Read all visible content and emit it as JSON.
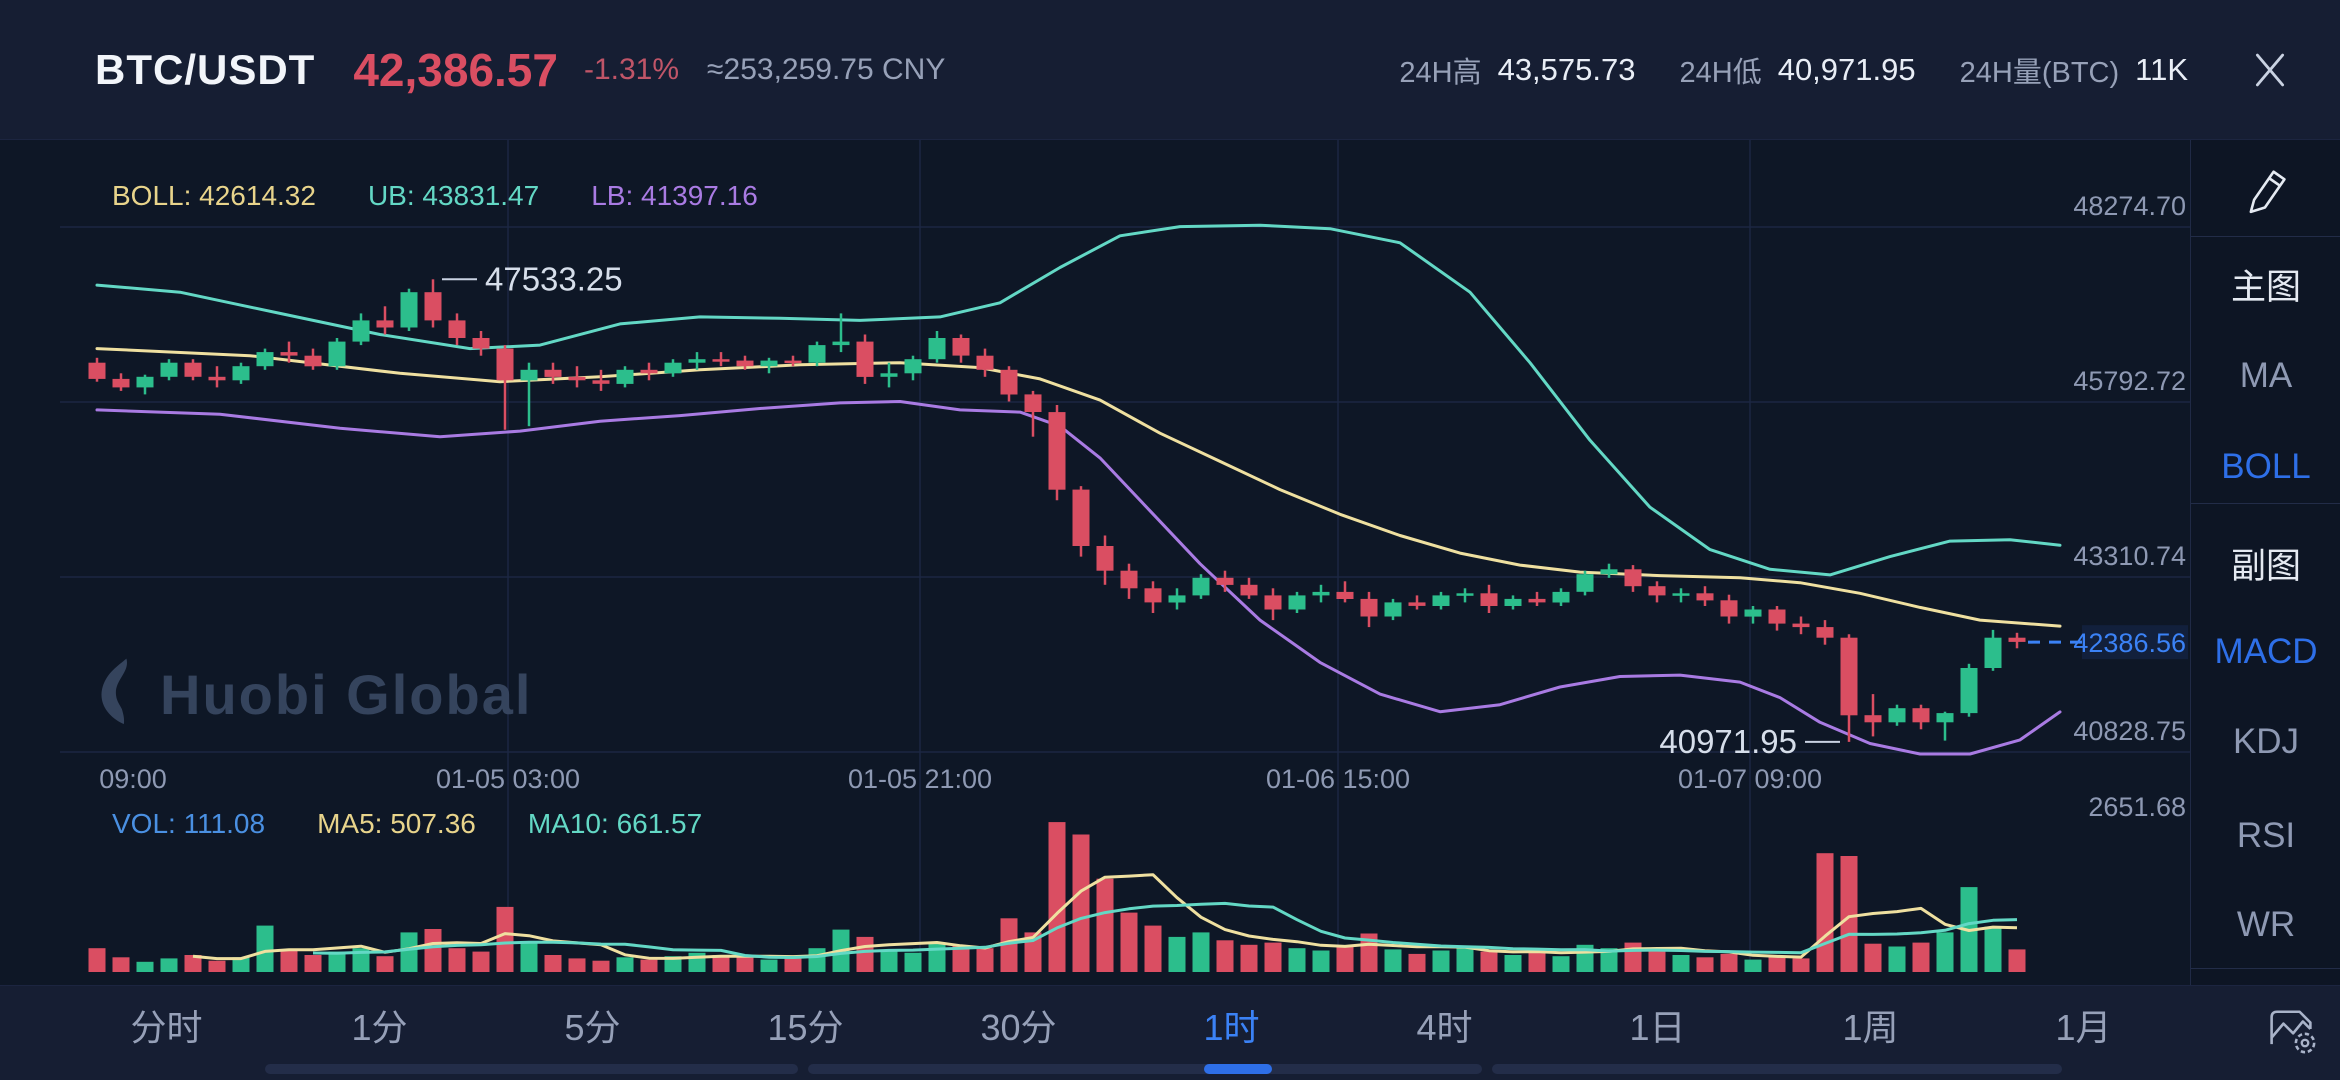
{
  "header": {
    "pair": "BTC/USDT",
    "price": "42,386.57",
    "change": "-1.31%",
    "approx_cny": "≈253,259.75 CNY",
    "stats": [
      {
        "label": "24H高",
        "value": "43,575.73"
      },
      {
        "label": "24H低",
        "value": "40,971.95"
      },
      {
        "label": "24H量(BTC)",
        "value": "11K"
      }
    ]
  },
  "icons": {
    "close": "close-icon",
    "edit": "pencil-icon",
    "settings": "chart-settings-icon",
    "logo": "huobi-flame-icon"
  },
  "indicators": {
    "main": [
      {
        "label": "BOLL:",
        "value": "42614.32",
        "color": "#E8D48B"
      },
      {
        "label": "UB:",
        "value": "43831.47",
        "color": "#63D8C5"
      },
      {
        "label": "LB:",
        "value": "41397.16",
        "color": "#A97BE3"
      }
    ],
    "volume": [
      {
        "label": "VOL:",
        "value": "111.08",
        "color": "#4A90E2"
      },
      {
        "label": "MA5:",
        "value": "507.36",
        "color": "#E8D48B"
      },
      {
        "label": "MA10:",
        "value": "661.57",
        "color": "#63D8C5"
      }
    ]
  },
  "watermark": {
    "text": "Huobi Global"
  },
  "sidebar": {
    "items": [
      {
        "label": "主图",
        "kind": "heading",
        "active": false
      },
      {
        "label": "MA",
        "kind": "option",
        "active": false
      },
      {
        "label": "BOLL",
        "kind": "option",
        "active": true
      },
      {
        "label": "副图",
        "kind": "heading",
        "active": false
      },
      {
        "label": "MACD",
        "kind": "option",
        "active": true
      },
      {
        "label": "KDJ",
        "kind": "option",
        "active": false
      },
      {
        "label": "RSI",
        "kind": "option",
        "active": false
      },
      {
        "label": "WR",
        "kind": "option",
        "active": false
      }
    ]
  },
  "footer": {
    "tabs": [
      {
        "label": "分时",
        "active": false
      },
      {
        "label": "1分",
        "active": false
      },
      {
        "label": "5分",
        "active": false
      },
      {
        "label": "15分",
        "active": false
      },
      {
        "label": "30分",
        "active": false
      },
      {
        "label": "1时",
        "active": true
      },
      {
        "label": "4时",
        "active": false
      },
      {
        "label": "1日",
        "active": false
      },
      {
        "label": "1周",
        "active": false
      },
      {
        "label": "1月",
        "active": false
      }
    ]
  },
  "chart_data": {
    "type": "candlestick",
    "title": "BTC/USDT 1小时 K线 (BOLL)",
    "price_axis_ticks": [
      {
        "label": "48274.70",
        "value": 48274.7
      },
      {
        "label": "45792.72",
        "value": 45792.72
      },
      {
        "label": "43310.74",
        "value": 43310.74
      },
      {
        "label": "40828.75",
        "value": 40828.75
      }
    ],
    "x_axis_labels": [
      "09:00",
      "01-05 03:00",
      "01-05 21:00",
      "01-06 15:00",
      "01-07 09:00"
    ],
    "current_price": {
      "label": "42386.56",
      "value": 42386.56
    },
    "annotations": {
      "high": {
        "label": "47533.25",
        "price": 47533.25,
        "index": 14
      },
      "low": {
        "label": "40971.95",
        "price": 40971.95,
        "index": 73
      }
    },
    "volume_axis": {
      "label": "2651.68",
      "max": 2651.68
    },
    "colors": {
      "up": "#2CBE8C",
      "down": "#DA4E62",
      "band_upper": "#63D8C5",
      "band_middle": "#EFE0A0",
      "band_lower": "#A97BE3",
      "price_line": "#3B82F6",
      "grid": "#1C2742",
      "axis_text": "#8E99B3",
      "annotation_text": "#D6DEEA",
      "vol_ma5": "#EFE0A0",
      "vol_ma10": "#63D8C5"
    },
    "candles": [
      [
        46350,
        46420,
        46080,
        46120
      ],
      [
        46120,
        46200,
        45950,
        46000
      ],
      [
        46000,
        46180,
        45900,
        46150
      ],
      [
        46150,
        46400,
        46100,
        46350
      ],
      [
        46350,
        46400,
        46100,
        46150
      ],
      [
        46150,
        46300,
        46000,
        46100
      ],
      [
        46100,
        46350,
        46050,
        46300
      ],
      [
        46300,
        46550,
        46250,
        46500
      ],
      [
        46500,
        46650,
        46350,
        46450
      ],
      [
        46450,
        46550,
        46250,
        46300
      ],
      [
        46300,
        46700,
        46250,
        46650
      ],
      [
        46650,
        47050,
        46600,
        46950
      ],
      [
        46950,
        47150,
        46750,
        46850
      ],
      [
        46850,
        47400,
        46800,
        47350
      ],
      [
        47350,
        47533,
        46850,
        46950
      ],
      [
        46950,
        47050,
        46600,
        46700
      ],
      [
        46700,
        46800,
        46450,
        46550
      ],
      [
        46550,
        46600,
        45400,
        46100
      ],
      [
        46100,
        46350,
        45450,
        46250
      ],
      [
        46250,
        46350,
        46050,
        46150
      ],
      [
        46150,
        46300,
        46000,
        46100
      ],
      [
        46100,
        46250,
        45950,
        46050
      ],
      [
        46050,
        46300,
        46000,
        46250
      ],
      [
        46250,
        46350,
        46100,
        46200
      ],
      [
        46200,
        46400,
        46150,
        46350
      ],
      [
        46350,
        46500,
        46250,
        46400
      ],
      [
        46400,
        46500,
        46300,
        46380
      ],
      [
        46380,
        46450,
        46250,
        46300
      ],
      [
        46300,
        46420,
        46200,
        46380
      ],
      [
        46380,
        46450,
        46300,
        46350
      ],
      [
        46350,
        46650,
        46300,
        46600
      ],
      [
        46600,
        47050,
        46500,
        46650
      ],
      [
        46650,
        46750,
        46050,
        46150
      ],
      [
        46150,
        46350,
        46000,
        46200
      ],
      [
        46200,
        46450,
        46100,
        46400
      ],
      [
        46400,
        46800,
        46350,
        46700
      ],
      [
        46700,
        46750,
        46350,
        46450
      ],
      [
        46450,
        46550,
        46150,
        46250
      ],
      [
        46250,
        46300,
        45800,
        45900
      ],
      [
        45900,
        45950,
        45300,
        45650
      ],
      [
        45650,
        45750,
        44400,
        44550
      ],
      [
        44550,
        44600,
        43600,
        43750
      ],
      [
        43750,
        43900,
        43200,
        43400
      ],
      [
        43400,
        43500,
        43000,
        43150
      ],
      [
        43150,
        43250,
        42800,
        42950
      ],
      [
        42950,
        43150,
        42850,
        43050
      ],
      [
        43050,
        43350,
        43000,
        43300
      ],
      [
        43300,
        43400,
        43100,
        43200
      ],
      [
        43200,
        43300,
        43000,
        43050
      ],
      [
        43050,
        43150,
        42700,
        42850
      ],
      [
        42850,
        43100,
        42800,
        43050
      ],
      [
        43050,
        43200,
        42950,
        43100
      ],
      [
        43100,
        43250,
        42950,
        43000
      ],
      [
        43000,
        43100,
        42600,
        42750
      ],
      [
        42750,
        43000,
        42700,
        42950
      ],
      [
        42950,
        43050,
        42850,
        42900
      ],
      [
        42900,
        43100,
        42850,
        43050
      ],
      [
        43050,
        43150,
        42950,
        43080
      ],
      [
        43080,
        43200,
        42800,
        42900
      ],
      [
        42900,
        43050,
        42850,
        43000
      ],
      [
        43000,
        43100,
        42900,
        42950
      ],
      [
        42950,
        43150,
        42900,
        43100
      ],
      [
        43100,
        43400,
        43050,
        43350
      ],
      [
        43350,
        43500,
        43300,
        43420
      ],
      [
        43420,
        43480,
        43100,
        43180
      ],
      [
        43180,
        43250,
        42950,
        43050
      ],
      [
        43050,
        43150,
        42950,
        43080
      ],
      [
        43080,
        43180,
        42900,
        42980
      ],
      [
        42980,
        43060,
        42650,
        42750
      ],
      [
        42750,
        42900,
        42650,
        42850
      ],
      [
        42850,
        42900,
        42550,
        42650
      ],
      [
        42650,
        42750,
        42500,
        42600
      ],
      [
        42600,
        42700,
        42350,
        42450
      ],
      [
        42450,
        42500,
        40972,
        41350
      ],
      [
        41350,
        41650,
        41050,
        41250
      ],
      [
        41250,
        41500,
        41200,
        41450
      ],
      [
        41450,
        41500,
        41150,
        41250
      ],
      [
        41250,
        41400,
        40990,
        41380
      ],
      [
        41380,
        42080,
        41330,
        42020
      ],
      [
        42020,
        42560,
        41980,
        42450
      ],
      [
        42450,
        42520,
        42300,
        42390
      ]
    ],
    "volumes": [
      420,
      260,
      180,
      240,
      300,
      200,
      260,
      820,
      380,
      300,
      360,
      420,
      280,
      700,
      760,
      420,
      360,
      1150,
      520,
      300,
      240,
      200,
      260,
      220,
      280,
      340,
      300,
      260,
      220,
      240,
      420,
      750,
      620,
      380,
      340,
      520,
      460,
      420,
      950,
      700,
      2650,
      2430,
      1650,
      1050,
      820,
      620,
      700,
      560,
      480,
      520,
      420,
      380,
      460,
      680,
      400,
      320,
      380,
      420,
      360,
      300,
      340,
      280,
      480,
      420,
      520,
      380,
      300,
      260,
      320,
      220,
      280,
      240,
      2100,
      2050,
      500,
      450,
      520,
      700,
      1500,
      800,
      400
    ],
    "bands": {
      "upper": [
        [
          97,
          47450
        ],
        [
          180,
          47350
        ],
        [
          280,
          47050
        ],
        [
          380,
          46750
        ],
        [
          470,
          46550
        ],
        [
          540,
          46600
        ],
        [
          620,
          46900
        ],
        [
          700,
          47000
        ],
        [
          780,
          46980
        ],
        [
          860,
          46950
        ],
        [
          940,
          47000
        ],
        [
          1000,
          47200
        ],
        [
          1060,
          47700
        ],
        [
          1120,
          48150
        ],
        [
          1180,
          48280
        ],
        [
          1260,
          48300
        ],
        [
          1330,
          48250
        ],
        [
          1400,
          48050
        ],
        [
          1470,
          47350
        ],
        [
          1530,
          46350
        ],
        [
          1590,
          45250
        ],
        [
          1650,
          44300
        ],
        [
          1710,
          43700
        ],
        [
          1770,
          43420
        ],
        [
          1830,
          43340
        ],
        [
          1890,
          43600
        ],
        [
          1950,
          43820
        ],
        [
          2010,
          43840
        ],
        [
          2060,
          43760
        ]
      ],
      "middle": [
        [
          97,
          46550
        ],
        [
          250,
          46450
        ],
        [
          400,
          46200
        ],
        [
          500,
          46080
        ],
        [
          600,
          46150
        ],
        [
          700,
          46250
        ],
        [
          800,
          46320
        ],
        [
          900,
          46350
        ],
        [
          980,
          46280
        ],
        [
          1040,
          46120
        ],
        [
          1100,
          45820
        ],
        [
          1160,
          45350
        ],
        [
          1220,
          44950
        ],
        [
          1280,
          44550
        ],
        [
          1340,
          44200
        ],
        [
          1400,
          43900
        ],
        [
          1460,
          43650
        ],
        [
          1520,
          43480
        ],
        [
          1580,
          43380
        ],
        [
          1660,
          43330
        ],
        [
          1740,
          43300
        ],
        [
          1800,
          43230
        ],
        [
          1860,
          43080
        ],
        [
          1920,
          42880
        ],
        [
          1980,
          42700
        ],
        [
          2060,
          42615
        ]
      ],
      "lower": [
        [
          97,
          45680
        ],
        [
          220,
          45620
        ],
        [
          340,
          45420
        ],
        [
          440,
          45300
        ],
        [
          520,
          45380
        ],
        [
          600,
          45520
        ],
        [
          680,
          45600
        ],
        [
          760,
          45700
        ],
        [
          840,
          45780
        ],
        [
          900,
          45800
        ],
        [
          960,
          45680
        ],
        [
          1020,
          45650
        ],
        [
          1060,
          45450
        ],
        [
          1100,
          45000
        ],
        [
          1150,
          44250
        ],
        [
          1200,
          43500
        ],
        [
          1260,
          42700
        ],
        [
          1320,
          42100
        ],
        [
          1380,
          41650
        ],
        [
          1440,
          41400
        ],
        [
          1500,
          41500
        ],
        [
          1560,
          41750
        ],
        [
          1620,
          41900
        ],
        [
          1680,
          41920
        ],
        [
          1740,
          41820
        ],
        [
          1780,
          41600
        ],
        [
          1820,
          41250
        ],
        [
          1870,
          40950
        ],
        [
          1920,
          40800
        ],
        [
          1970,
          40800
        ],
        [
          2020,
          41000
        ],
        [
          2060,
          41397
        ]
      ]
    }
  }
}
